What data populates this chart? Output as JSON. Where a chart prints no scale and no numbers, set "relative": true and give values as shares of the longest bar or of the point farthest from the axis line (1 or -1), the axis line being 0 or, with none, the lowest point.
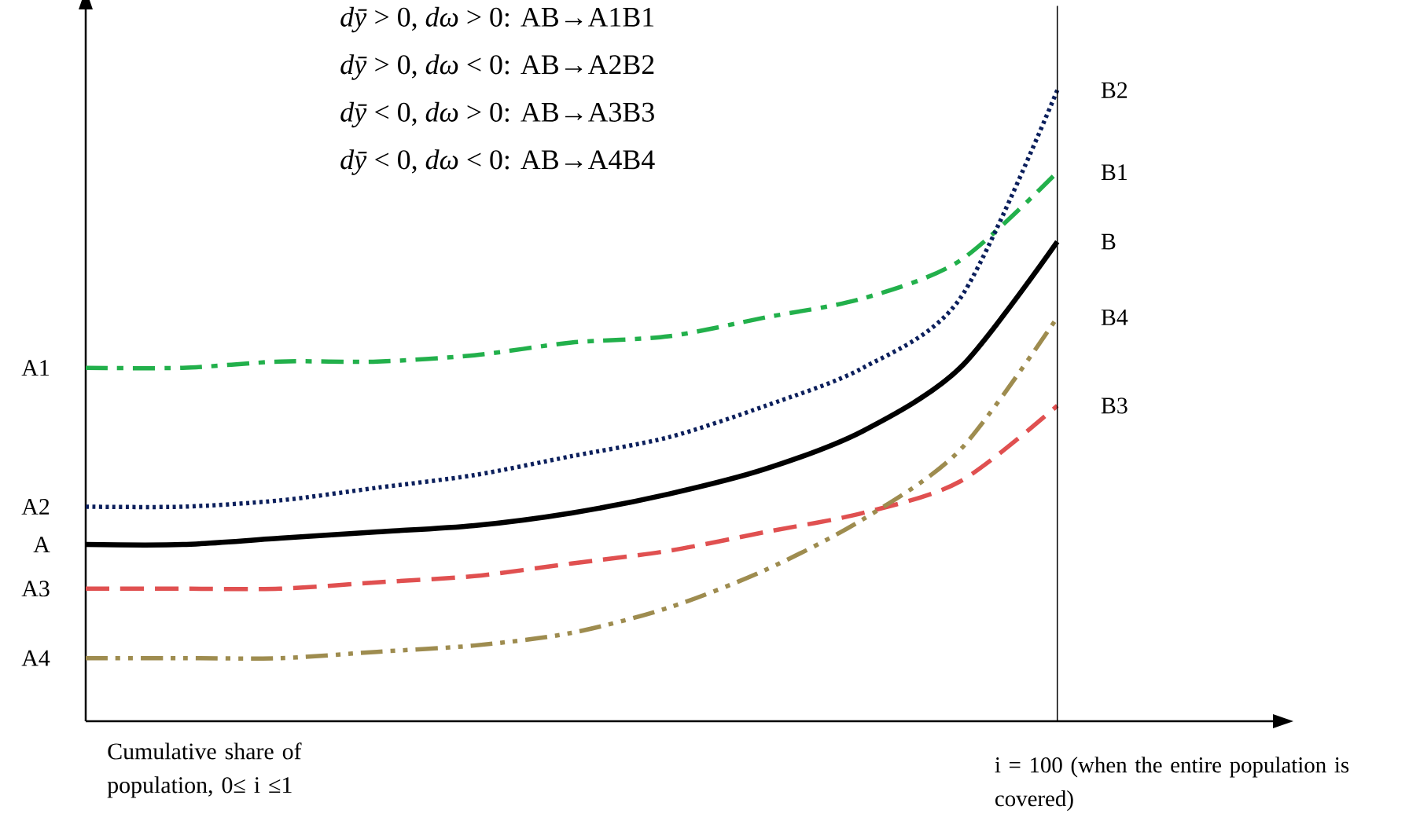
{
  "chart_data": {
    "type": "line",
    "relative": true,
    "marker": "none",
    "categories": [
      null,
      null,
      null,
      null,
      null,
      null,
      null,
      null,
      null,
      null,
      null
    ],
    "xlabel": "Cumulative share of population, 0≤ i ≤1",
    "series": [
      {
        "color": "#000000",
        "line_style": "solid",
        "values": [
          0.28,
          0.28,
          0.29,
          0.3,
          0.31,
          0.33,
          0.36,
          0.4,
          0.46,
          0.56,
          0.76
        ]
      },
      {
        "color": "#22b04b",
        "line_style": "dashdot",
        "values": [
          0.56,
          0.56,
          0.57,
          0.57,
          0.58,
          0.6,
          0.61,
          0.64,
          0.67,
          0.73,
          0.87
        ]
      },
      {
        "color": "#0b1f5c",
        "line_style": "dotted",
        "values": [
          0.34,
          0.34,
          0.35,
          0.37,
          0.39,
          0.42,
          0.45,
          0.5,
          0.56,
          0.67,
          1
        ]
      },
      {
        "color": "#e05050",
        "line_style": "dashed",
        "values": [
          0.21,
          0.21,
          0.21,
          0.22,
          0.23,
          0.25,
          0.27,
          0.3,
          0.33,
          0.38,
          0.5
        ]
      },
      {
        "color": "#9e8c4f",
        "line_style": "dashdotdot",
        "values": [
          0.1,
          0.1,
          0.1,
          0.11,
          0.12,
          0.14,
          0.18,
          0.24,
          0.32,
          0.43,
          0.64
        ]
      }
    ],
    "annotations": [
      "*dȳ* > 0, *dω* > 0: AB→A1B1",
      "*dȳ* > 0, *dω* < 0: AB→A2B2",
      "*dȳ* < 0, *dω* > 0: AB→A3B3",
      "*dȳ* < 0, *dω* < 0: AB→A4B4",
      "A",
      "A1",
      "A2",
      "A3",
      "A4",
      "B",
      "B1",
      "B2",
      "B3",
      "B4",
      "i = 100 (when the entire population is covered)"
    ]
  }
}
